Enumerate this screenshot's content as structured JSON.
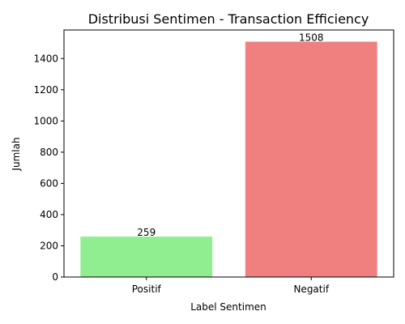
{
  "chart_data": {
    "type": "bar",
    "title": "Distribusi Sentimen - Transaction Efficiency",
    "xlabel": "Label Sentimen",
    "ylabel": "Jumlah",
    "categories": [
      "Positif",
      "Negatif"
    ],
    "values": [
      259,
      1508
    ],
    "data_labels": [
      "259",
      "1508"
    ],
    "colors": [
      "#90ee90",
      "#f08080"
    ],
    "ylim": [
      0,
      1583
    ],
    "yticks": [
      0,
      200,
      400,
      600,
      800,
      1000,
      1200,
      1400
    ],
    "ytick_labels": [
      "0",
      "200",
      "400",
      "600",
      "800",
      "1000",
      "1200",
      "1400"
    ],
    "grid": false,
    "legend": "none"
  }
}
